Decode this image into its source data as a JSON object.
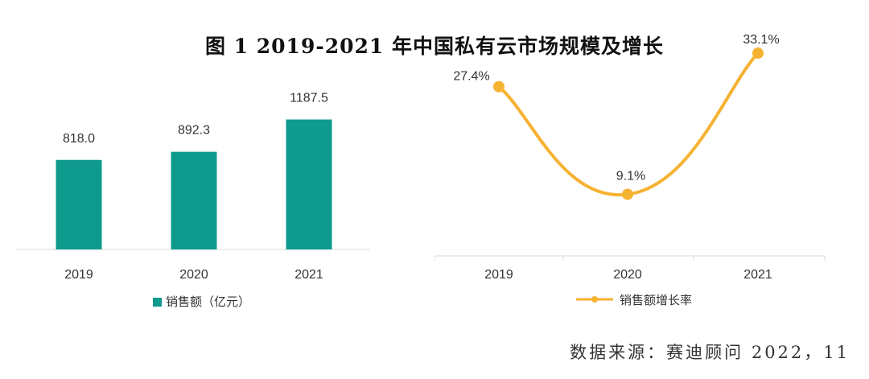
{
  "title": "图 1  2019-2021 年中国私有云市场规模及增长",
  "source": "数据来源：赛迪顾问 2022，11",
  "chart_data": [
    {
      "type": "bar",
      "categories": [
        "2019",
        "2020",
        "2021"
      ],
      "series": [
        {
          "name": "销售额（亿元）",
          "values": [
            818.0,
            892.3,
            1187.5
          ],
          "labels": [
            "818.0",
            "892.3",
            "1187.5"
          ],
          "color": "#0f9a8e"
        }
      ],
      "ylim": [
        0,
        1250
      ],
      "grid": false,
      "legend": "bottom-left"
    },
    {
      "type": "line",
      "categories": [
        "2019",
        "2020",
        "2021"
      ],
      "series": [
        {
          "name": "销售额增长率",
          "values": [
            27.4,
            9.1,
            33.1
          ],
          "labels": [
            "27.4%",
            "9.1%",
            "33.1%"
          ],
          "color": "#f6b232"
        }
      ],
      "ylim": [
        0,
        40
      ],
      "smooth": true,
      "grid": false,
      "legend": "bottom-center"
    }
  ]
}
